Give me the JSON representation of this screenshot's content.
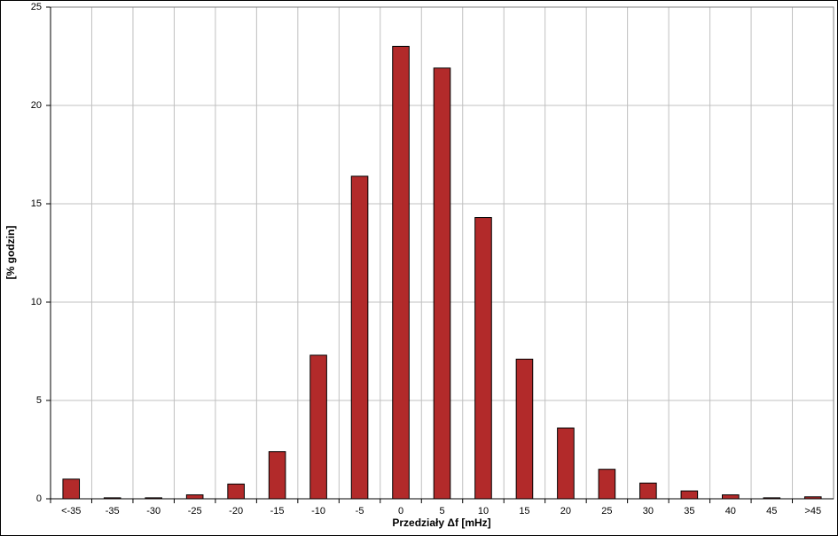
{
  "chart_data": {
    "type": "bar",
    "y_label": "[% godzin]",
    "x_label": "Przedziały Δf [mHz]",
    "categories": [
      "<-35",
      "-35",
      "-30",
      "-25",
      "-20",
      "-15",
      "-10",
      "-5",
      "0",
      "5",
      "10",
      "15",
      "20",
      "25",
      "30",
      "35",
      "40",
      "45",
      ">45"
    ],
    "values": [
      1.0,
      0.05,
      0.05,
      0.2,
      0.75,
      2.4,
      7.3,
      16.4,
      23.0,
      21.9,
      14.3,
      7.1,
      3.6,
      1.5,
      0.8,
      0.4,
      0.2,
      0.05,
      0.1
    ],
    "color": "#b22a2a",
    "ylim": [
      0,
      25
    ],
    "yticks": [
      0,
      5,
      10,
      15,
      20,
      25
    ],
    "grid": true
  }
}
